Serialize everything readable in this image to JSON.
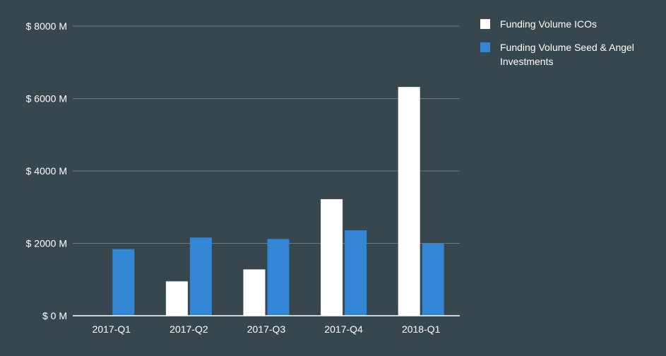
{
  "chart_data": {
    "type": "bar",
    "title": "",
    "xlabel": "",
    "ylabel": "",
    "categories": [
      "2017-Q1",
      "2017-Q2",
      "2017-Q3",
      "2017-Q4",
      "2018-Q1"
    ],
    "series": [
      {
        "name": "Funding Volume ICOs",
        "color": "#ffffff",
        "values": [
          0,
          950,
          1280,
          3220,
          6320
        ]
      },
      {
        "name": "Funding Volume Seed & Angel Investments",
        "color": "#3385d6",
        "values": [
          1840,
          2160,
          2120,
          2360,
          1990
        ]
      }
    ],
    "ylim": [
      0,
      8000
    ],
    "yticks": [
      0,
      2000,
      4000,
      6000,
      8000
    ],
    "ytick_labels": [
      "$ 0 M",
      "$ 2000 M",
      "$ 4000 M",
      "$ 6000 M",
      "$ 8000 M"
    ],
    "grid": true,
    "legend_position": "top-right"
  },
  "colors": {
    "background": "#37474f",
    "gridline": "#6c7a80",
    "axis": "#ffffff",
    "text": "#ffffff"
  }
}
